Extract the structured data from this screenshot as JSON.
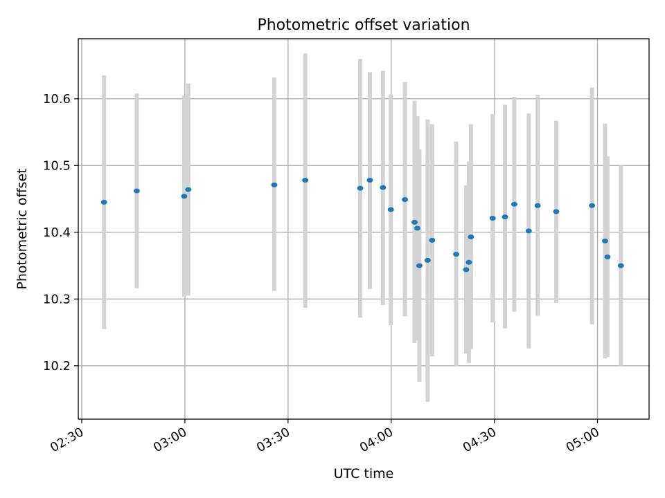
{
  "chart_data": {
    "type": "scatter",
    "title": "Photometric offset variation",
    "xlabel": "UTC time",
    "ylabel": "Photometric offset",
    "xlim": [
      "02:29",
      "05:15"
    ],
    "ylim": [
      10.12,
      10.69
    ],
    "grid": true,
    "x_ticks": [
      "02:30",
      "03:00",
      "03:30",
      "04:00",
      "04:30",
      "05:00"
    ],
    "y_ticks": [
      10.2,
      10.3,
      10.4,
      10.5,
      10.6
    ],
    "y_tick_labels": [
      "10.2",
      "10.3",
      "10.4",
      "10.5",
      "10.6"
    ],
    "marker_color": "#1f77b4",
    "errorbar_color": "#d3d3d3",
    "points": [
      {
        "x": "02:36:30",
        "y": 10.445,
        "y_low": 10.255,
        "y_high": 10.635
      },
      {
        "x": "02:46:00",
        "y": 10.462,
        "y_low": 10.316,
        "y_high": 10.608
      },
      {
        "x": "02:59:48",
        "y": 10.454,
        "y_low": 10.303,
        "y_high": 10.605
      },
      {
        "x": "03:01:00",
        "y": 10.464,
        "y_low": 10.305,
        "y_high": 10.623
      },
      {
        "x": "03:26:00",
        "y": 10.471,
        "y_low": 10.312,
        "y_high": 10.632
      },
      {
        "x": "03:35:00",
        "y": 10.478,
        "y_low": 10.287,
        "y_high": 10.668
      },
      {
        "x": "03:51:00",
        "y": 10.466,
        "y_low": 10.272,
        "y_high": 10.66
      },
      {
        "x": "03:53:48",
        "y": 10.478,
        "y_low": 10.315,
        "y_high": 10.64
      },
      {
        "x": "03:57:36",
        "y": 10.467,
        "y_low": 10.291,
        "y_high": 10.642
      },
      {
        "x": "03:59:54",
        "y": 10.434,
        "y_low": 10.261,
        "y_high": 10.607
      },
      {
        "x": "04:04:00",
        "y": 10.449,
        "y_low": 10.274,
        "y_high": 10.625
      },
      {
        "x": "04:06:48",
        "y": 10.415,
        "y_low": 10.234,
        "y_high": 10.597
      },
      {
        "x": "04:07:36",
        "y": 10.406,
        "y_low": 10.238,
        "y_high": 10.574
      },
      {
        "x": "04:08:12",
        "y": 10.35,
        "y_low": 10.176,
        "y_high": 10.524
      },
      {
        "x": "04:10:36",
        "y": 10.358,
        "y_low": 10.146,
        "y_high": 10.569
      },
      {
        "x": "04:11:54",
        "y": 10.388,
        "y_low": 10.214,
        "y_high": 10.562
      },
      {
        "x": "04:18:54",
        "y": 10.367,
        "y_low": 10.199,
        "y_high": 10.536
      },
      {
        "x": "04:21:48",
        "y": 10.344,
        "y_low": 10.218,
        "y_high": 10.47
      },
      {
        "x": "04:22:36",
        "y": 10.355,
        "y_low": 10.204,
        "y_high": 10.506
      },
      {
        "x": "04:23:12",
        "y": 10.393,
        "y_low": 10.225,
        "y_high": 10.562
      },
      {
        "x": "04:29:30",
        "y": 10.421,
        "y_low": 10.265,
        "y_high": 10.577
      },
      {
        "x": "04:33:06",
        "y": 10.423,
        "y_low": 10.256,
        "y_high": 10.591
      },
      {
        "x": "04:35:48",
        "y": 10.442,
        "y_low": 10.281,
        "y_high": 10.603
      },
      {
        "x": "04:40:00",
        "y": 10.402,
        "y_low": 10.226,
        "y_high": 10.578
      },
      {
        "x": "04:42:36",
        "y": 10.44,
        "y_low": 10.275,
        "y_high": 10.606
      },
      {
        "x": "04:48:00",
        "y": 10.431,
        "y_low": 10.294,
        "y_high": 10.567
      },
      {
        "x": "04:58:24",
        "y": 10.44,
        "y_low": 10.262,
        "y_high": 10.617
      },
      {
        "x": "05:02:12",
        "y": 10.387,
        "y_low": 10.211,
        "y_high": 10.563
      },
      {
        "x": "05:02:54",
        "y": 10.363,
        "y_low": 10.213,
        "y_high": 10.514
      },
      {
        "x": "05:06:48",
        "y": 10.35,
        "y_low": 10.2,
        "y_high": 10.5
      }
    ]
  }
}
